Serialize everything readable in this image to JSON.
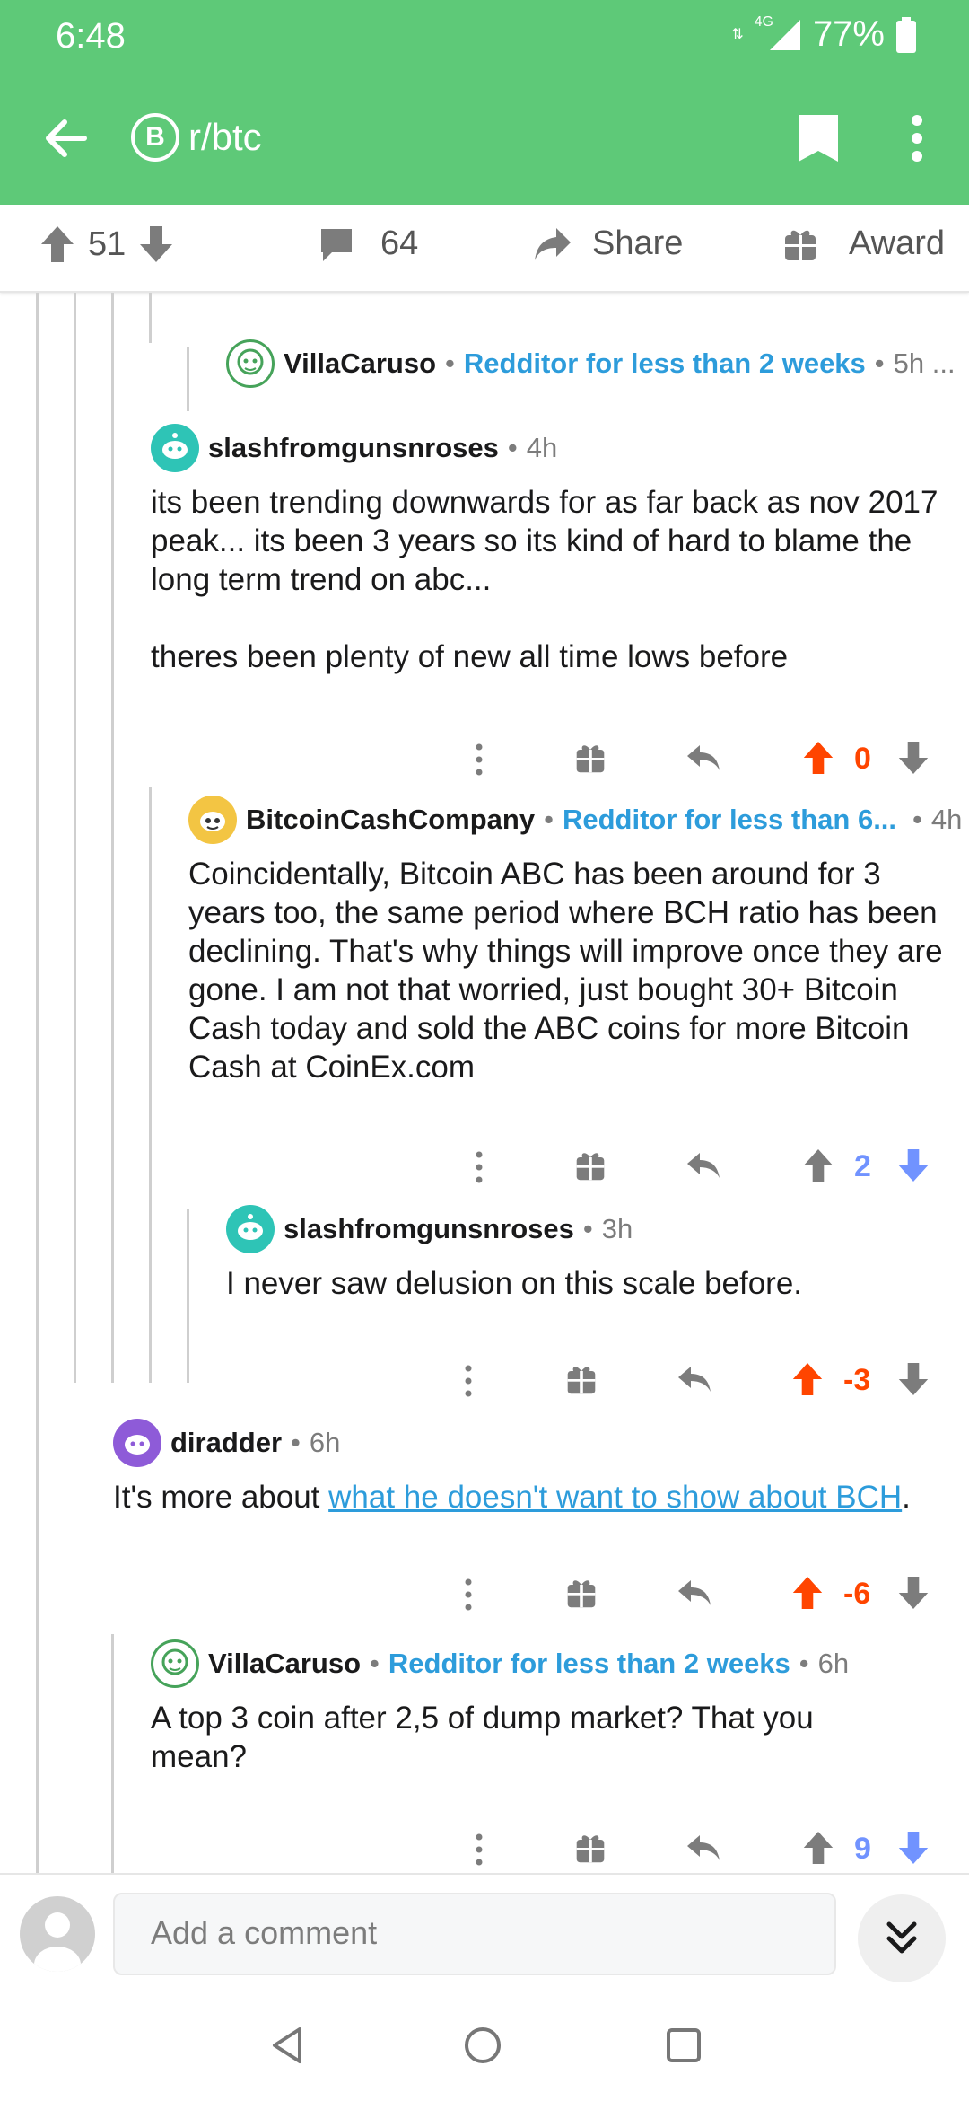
{
  "status_bar": {
    "time": "6:48",
    "network": "4G",
    "battery": "77%"
  },
  "toolbar": {
    "subreddit": "r/btc",
    "sub_icon_letter": "B"
  },
  "post_actions": {
    "upvotes": "51",
    "comments": "64",
    "share": "Share",
    "award": "Award"
  },
  "comments": [
    {
      "id": "c1",
      "username": "VillaCaruso",
      "flair": "Redditor for less than 2 weeks",
      "time": "5h ..."
    },
    {
      "id": "c2",
      "username": "slashfromgunsnroses",
      "time": "4h",
      "body": [
        "its been trending downwards for as far back as nov 2017 peak... its been 3 years so its kind of hard to blame the long term trend on abc...",
        "theres been plenty of new all time lows before"
      ],
      "score": "0",
      "vote": "up"
    },
    {
      "id": "c3",
      "username": "BitcoinCashCompany",
      "flair": "Redditor for less than 6...",
      "time": "4h",
      "body": [
        "Coincidentally, Bitcoin ABC has been around for 3 years too, the same period where BCH ratio has been declining. That's why things will improve once they are gone. I am not that worried, just bought 30+ Bitcoin Cash today and sold the ABC coins for more Bitcoin Cash at CoinEx.com"
      ],
      "score": "2",
      "vote": "down"
    },
    {
      "id": "c4",
      "username": "slashfromgunsnroses",
      "time": "3h",
      "body": [
        "I never saw delusion on this scale before."
      ],
      "score": "-3",
      "vote": "up"
    },
    {
      "id": "c5",
      "username": "diradder",
      "time": "6h",
      "body_prefix": "It's more about ",
      "body_link": "what he doesn't want to show about BCH",
      "body_suffix": ".",
      "score": "-6",
      "vote": "up"
    },
    {
      "id": "c6",
      "username": "VillaCaruso",
      "flair": "Redditor for less than 2 weeks",
      "time": "6h",
      "body": [
        "A top 3 coin after 2,5 of dump market? That you mean?"
      ],
      "score": "9",
      "vote": "down"
    }
  ],
  "compose": {
    "placeholder": "Add a comment"
  },
  "colors": {
    "header": "#5ec978",
    "upvote": "#ff4500",
    "downvote": "#7193ff",
    "flair": "#2d9cdb"
  }
}
